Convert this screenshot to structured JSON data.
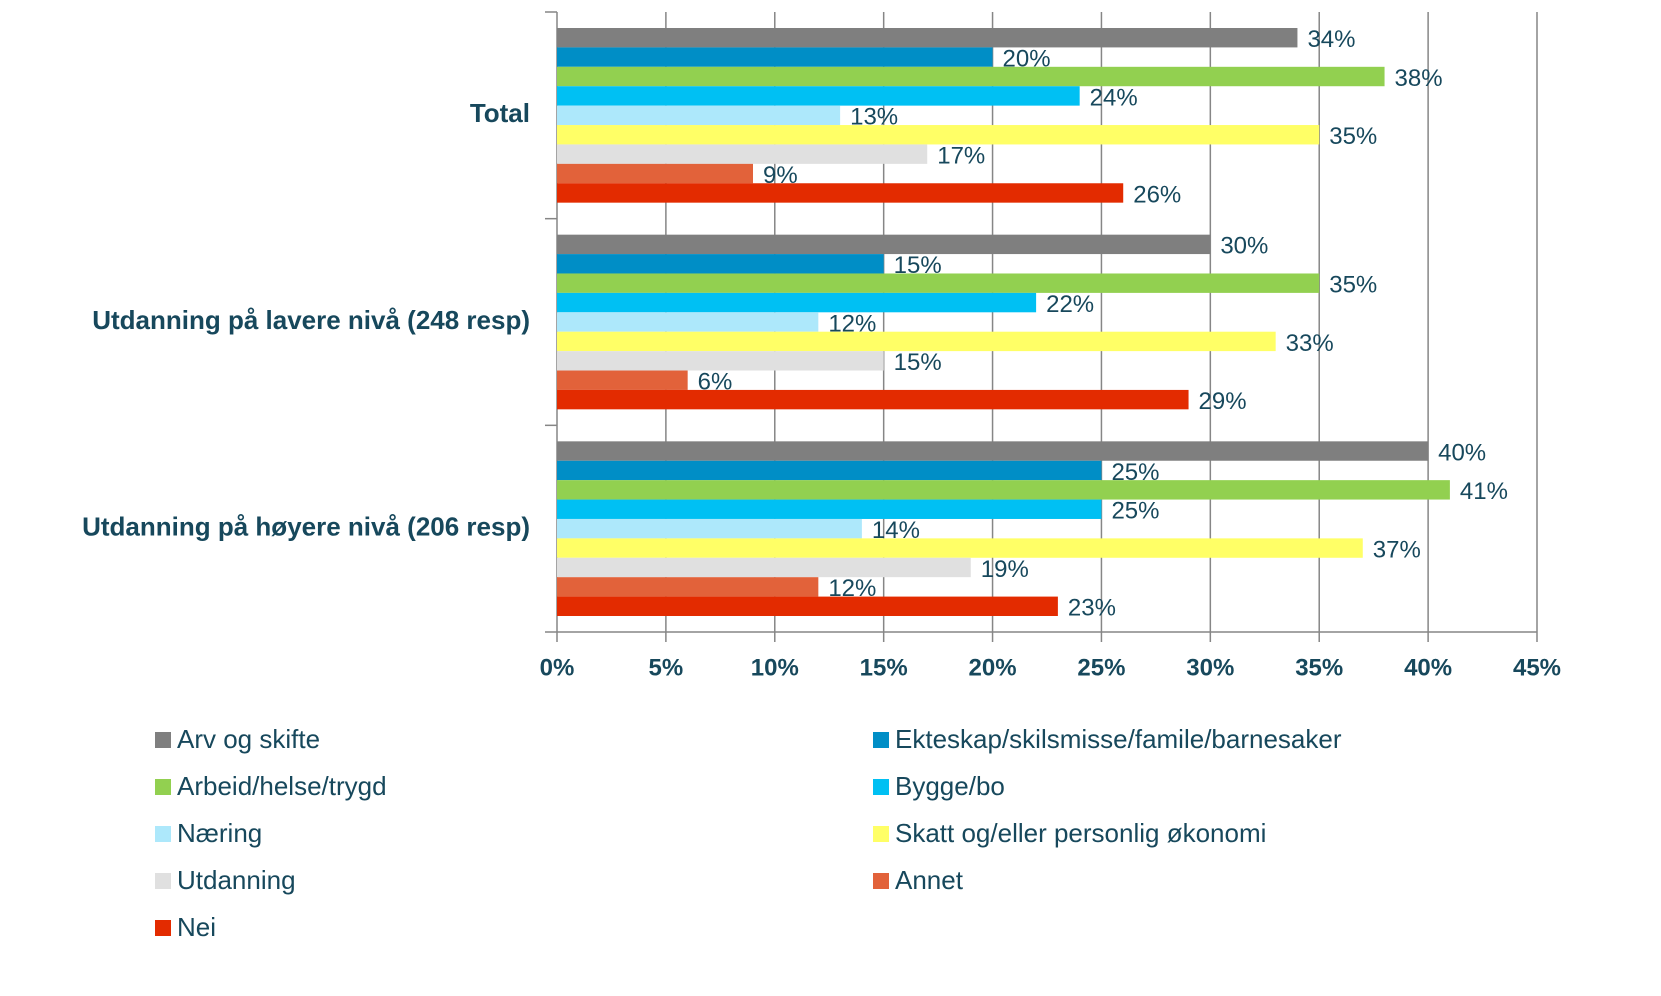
{
  "chart_data": {
    "type": "barh",
    "categories": [
      "Total",
      "Utdanning på lavere nivå (248 resp)",
      "Utdanning på høyere nivå (206 resp)"
    ],
    "series": [
      {
        "name": "Arv og skifte",
        "color": "#7f7f7f",
        "values": [
          34,
          30,
          40
        ],
        "value_labels": [
          "34%",
          "30%",
          "40%"
        ]
      },
      {
        "name": "Ekteskap/skilsmisse/famile/barnesaker",
        "color": "#008ec6",
        "values": [
          20,
          15,
          25
        ],
        "value_labels": [
          "20%",
          "15%",
          "25%"
        ]
      },
      {
        "name": "Arbeid/helse/trygd",
        "color": "#92d050",
        "values": [
          38,
          35,
          41
        ],
        "value_labels": [
          "38%",
          "35%",
          "41%"
        ]
      },
      {
        "name": "Bygge/bo",
        "color": "#00c0f3",
        "values": [
          24,
          22,
          25
        ],
        "value_labels": [
          "24%",
          "22%",
          "25%"
        ]
      },
      {
        "name": "Næring",
        "color": "#ade8fb",
        "values": [
          13,
          12,
          14
        ],
        "value_labels": [
          "13%",
          "12%",
          "14%"
        ]
      },
      {
        "name": "Skatt og/eller personlig økonomi",
        "color": "#ffff66",
        "values": [
          35,
          33,
          37
        ],
        "value_labels": [
          "35%",
          "33%",
          "37%"
        ]
      },
      {
        "name": "Utdanning",
        "color": "#e0e0e0",
        "values": [
          17,
          15,
          19
        ],
        "value_labels": [
          "17%",
          "15%",
          "19%"
        ]
      },
      {
        "name": "Annet",
        "color": "#e2623a",
        "values": [
          9,
          6,
          12
        ],
        "value_labels": [
          "9%",
          "6%",
          "12%"
        ]
      },
      {
        "name": "Nei",
        "color": "#e32b00",
        "values": [
          26,
          29,
          23
        ],
        "value_labels": [
          "26%",
          "29%",
          "23%"
        ]
      }
    ],
    "xlim": [
      0,
      45
    ],
    "xticks": [
      {
        "value": 0,
        "label": "0%"
      },
      {
        "value": 5,
        "label": "5%"
      },
      {
        "value": 10,
        "label": "10%"
      },
      {
        "value": 15,
        "label": "15%"
      },
      {
        "value": 20,
        "label": "20%"
      },
      {
        "value": 25,
        "label": "25%"
      },
      {
        "value": 30,
        "label": "30%"
      },
      {
        "value": 35,
        "label": "35%"
      },
      {
        "value": 40,
        "label": "40%"
      },
      {
        "value": 45,
        "label": "45%"
      }
    ],
    "grid": true,
    "legend": "bottom"
  }
}
